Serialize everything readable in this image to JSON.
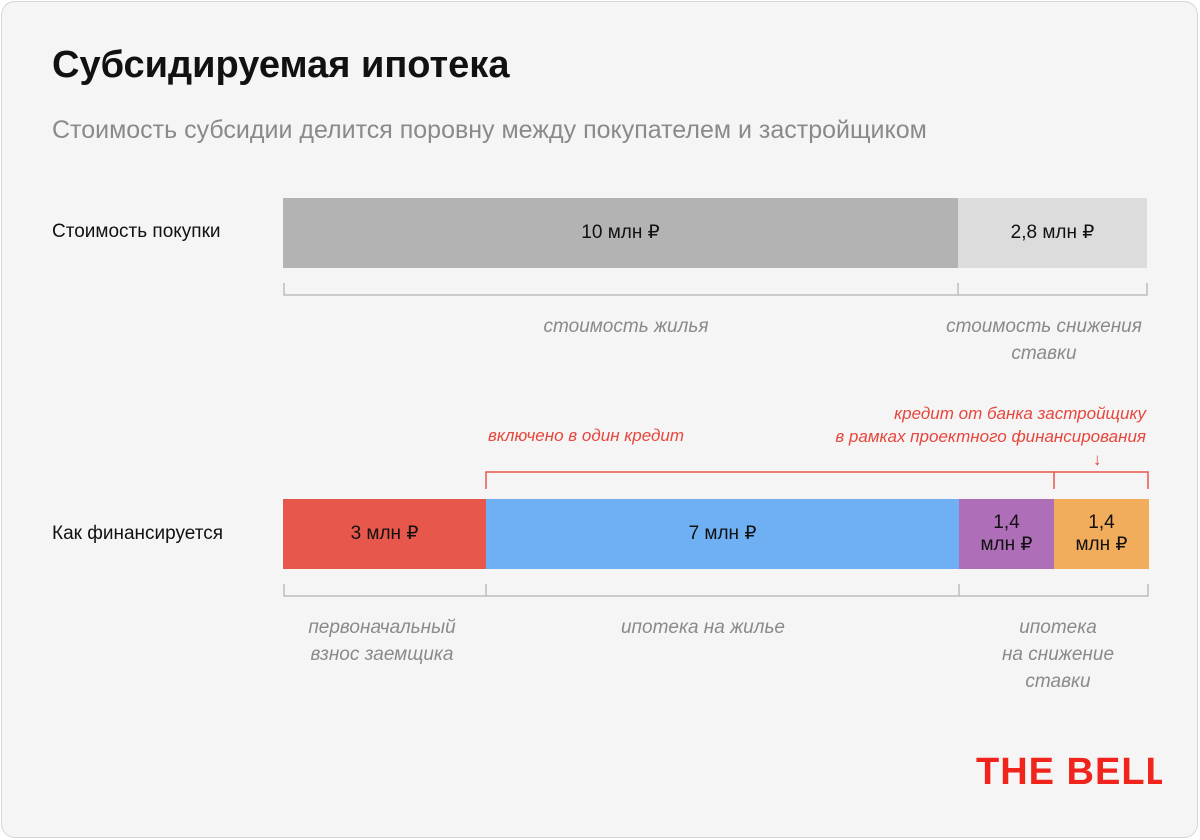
{
  "header": {
    "title": "Субсидируемая ипотека",
    "subtitle": "Стоимость субсидии делится поровну между покупателем и застройщиком"
  },
  "chart_data": {
    "type": "bar",
    "orientation": "horizontal-stacked",
    "rows": [
      {
        "label": "Стоимость покупки",
        "segments": [
          {
            "value": 10,
            "label": "10 млн ₽",
            "color": "#b3b3b3"
          },
          {
            "value": 2.8,
            "label": "2,8 млн ₽",
            "color": "#dcdcdc"
          }
        ]
      },
      {
        "label": "Как финансируется",
        "segments": [
          {
            "value": 3,
            "label": "3 млн ₽",
            "color": "#e8574c"
          },
          {
            "value": 7,
            "label": "7 млн ₽",
            "color": "#6eb0f3"
          },
          {
            "value": 1.4,
            "label": "1,4 млн ₽",
            "label_lines": [
              "1,4",
              "млн ₽"
            ],
            "color": "#ae6eb8"
          },
          {
            "value": 1.4,
            "label": "1,4 млн ₽",
            "label_lines": [
              "1,4",
              "млн ₽"
            ],
            "color": "#f1ac5c"
          }
        ]
      }
    ],
    "brackets": {
      "top_row": [
        {
          "lines": [
            "стоимость жилья"
          ]
        },
        {
          "lines": [
            "стоимость снижения",
            "ставки"
          ]
        }
      ],
      "bottom_row": [
        {
          "lines": [
            "первоначальный",
            "взнос заемщика"
          ]
        },
        {
          "lines": [
            "ипотека на жилье"
          ]
        },
        {
          "lines": [
            "ипотека",
            "на снижение",
            "ставки"
          ]
        }
      ]
    },
    "annotations": {
      "included": "включено в один кредит",
      "bank_credit": [
        "кредит от банка застройщику",
        "в рамках проектного финансирования"
      ],
      "arrow": "↓"
    }
  },
  "logo": {
    "text": "THE BELL."
  },
  "colors": {
    "accent_red": "#e8463c",
    "logo_red": "#f0241c",
    "bracket": "#bdbdbd"
  }
}
